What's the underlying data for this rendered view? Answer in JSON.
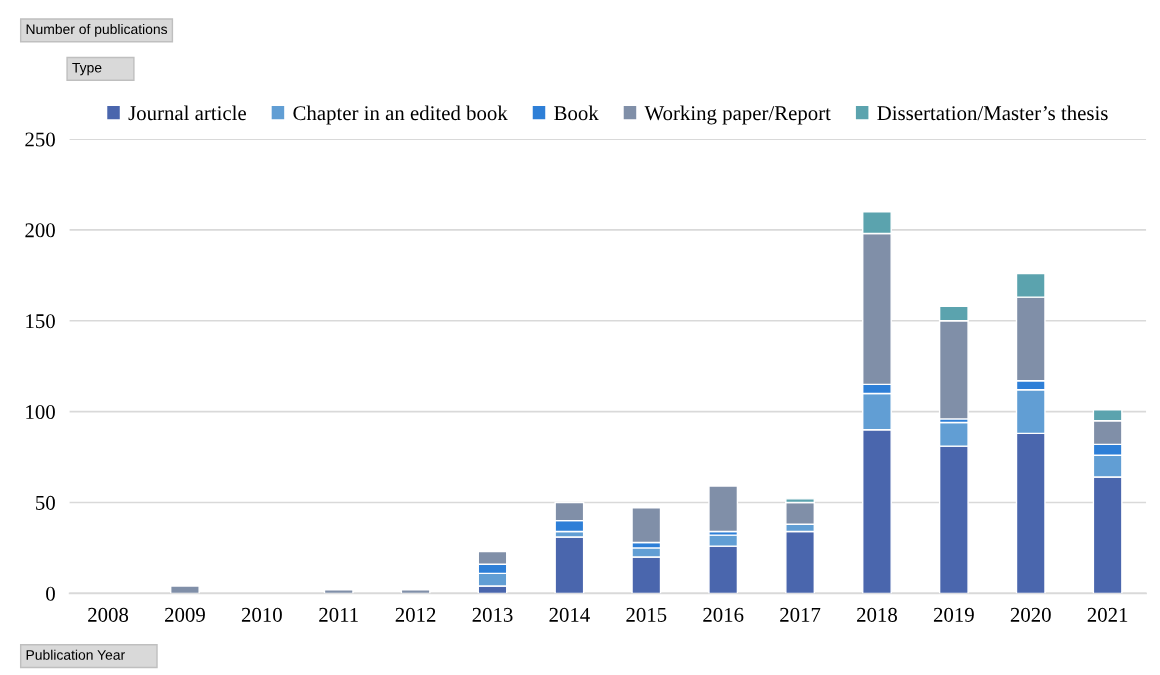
{
  "chart_data": {
    "type": "bar",
    "stacked": true,
    "annotations": [
      "Number of publications"
    ],
    "xlabel": "Publication Year",
    "legend_title": "Type",
    "categories": [
      "2008",
      "2009",
      "2010",
      "2011",
      "2012",
      "2013",
      "2014",
      "2015",
      "2016",
      "2017",
      "2018",
      "2019",
      "2020",
      "2021"
    ],
    "series": [
      {
        "name": "Journal article",
        "color": "#4a66ad",
        "values": [
          null,
          null,
          null,
          null,
          null,
          4,
          31,
          20,
          26,
          34,
          90,
          81,
          88,
          64
        ]
      },
      {
        "name": "Chapter in an edited book",
        "color": "#619ed4",
        "values": [
          null,
          null,
          null,
          null,
          null,
          7,
          3,
          5,
          6,
          4,
          20,
          13,
          24,
          12
        ]
      },
      {
        "name": "Book",
        "color": "#2e7fd7",
        "values": [
          null,
          null,
          null,
          null,
          null,
          5,
          6,
          3,
          2,
          null,
          5,
          2,
          5,
          6
        ]
      },
      {
        "name": "Working paper/Report",
        "color": "#808fa8",
        "values": [
          null,
          4,
          null,
          2,
          2,
          7,
          10,
          19,
          25,
          12,
          83,
          54,
          46,
          13
        ]
      },
      {
        "name": "Dissertation/Master’s thesis",
        "color": "#5ba3ae",
        "values": [
          null,
          null,
          null,
          null,
          null,
          null,
          null,
          null,
          null,
          2,
          12,
          8,
          13,
          6
        ]
      }
    ],
    "ylim": [
      0,
      250
    ],
    "yticks": [
      0,
      50,
      100,
      150,
      200,
      250
    ],
    "grid": "y",
    "legend": "top"
  }
}
